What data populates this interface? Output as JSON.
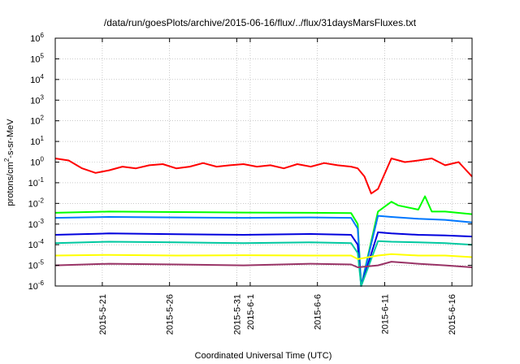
{
  "chart_data": {
    "type": "line",
    "title": "/data/run/goesPlots/archive/2015-06-16/flux/../flux/31daysMarsFluxes.txt",
    "xlabel": "Coordinated Universal Time (UTC)",
    "ylabel_parts": {
      "base": "protons/cm",
      "sup": "2",
      "rest": "-s-sr-MeV"
    },
    "yscale": "log",
    "ylim": [
      1e-06,
      1000000.0
    ],
    "xlim": [
      "2015-05-17T12:00",
      "2015-06-17T12:00"
    ],
    "grid": true,
    "legend": "none",
    "y_ticks": [
      {
        "value": 1e-06,
        "base": "10",
        "exp": "-6"
      },
      {
        "value": 1e-05,
        "base": "10",
        "exp": "-5"
      },
      {
        "value": 0.0001,
        "base": "10",
        "exp": "-4"
      },
      {
        "value": 0.001,
        "base": "10",
        "exp": "-3"
      },
      {
        "value": 0.01,
        "base": "10",
        "exp": "-2"
      },
      {
        "value": 0.1,
        "base": "10",
        "exp": "-1"
      },
      {
        "value": 1.0,
        "base": "10",
        "exp": "0"
      },
      {
        "value": 10.0,
        "base": "10",
        "exp": "1"
      },
      {
        "value": 100.0,
        "base": "10",
        "exp": "2"
      },
      {
        "value": 1000.0,
        "base": "10",
        "exp": "3"
      },
      {
        "value": 10000.0,
        "base": "10",
        "exp": "4"
      },
      {
        "value": 100000.0,
        "base": "10",
        "exp": "5"
      },
      {
        "value": 1000000.0,
        "base": "10",
        "exp": "6"
      }
    ],
    "x_ticks": [
      {
        "date": "2015-05-21",
        "label": "2015-5-21"
      },
      {
        "date": "2015-05-26",
        "label": "2015-5-26"
      },
      {
        "date": "2015-05-31",
        "label": "2015-5-31"
      },
      {
        "date": "2015-06-01",
        "label": "2015-6-1"
      },
      {
        "date": "2015-06-06",
        "label": "2015-6-6"
      },
      {
        "date": "2015-06-11",
        "label": "2015-6-11"
      },
      {
        "date": "2015-06-16",
        "label": "2015-6-16"
      }
    ],
    "series": [
      {
        "color": "#ff0000",
        "x": [
          "2015-05-17T12:00",
          "2015-05-18T12:00",
          "2015-05-19T12:00",
          "2015-05-20T12:00",
          "2015-05-21T12:00",
          "2015-05-22T12:00",
          "2015-05-23T12:00",
          "2015-05-24T12:00",
          "2015-05-25T12:00",
          "2015-05-26T12:00",
          "2015-05-27T12:00",
          "2015-05-28T12:00",
          "2015-05-29T12:00",
          "2015-05-30T12:00",
          "2015-05-31T12:00",
          "2015-06-01T12:00",
          "2015-06-02T12:00",
          "2015-06-03T12:00",
          "2015-06-04T12:00",
          "2015-06-05T12:00",
          "2015-06-06T12:00",
          "2015-06-07T12:00",
          "2015-06-08T12:00",
          "2015-06-09T00:00",
          "2015-06-09T12:00",
          "2015-06-10T00:00",
          "2015-06-10T12:00",
          "2015-06-11T12:00",
          "2015-06-12T12:00",
          "2015-06-13T12:00",
          "2015-06-14T12:00",
          "2015-06-15T12:00",
          "2015-06-16T12:00",
          "2015-06-17T12:00"
        ],
        "y": [
          1.5,
          1.2,
          0.5,
          0.3,
          0.4,
          0.6,
          0.5,
          0.7,
          0.8,
          0.5,
          0.6,
          0.9,
          0.6,
          0.7,
          0.8,
          0.6,
          0.7,
          0.5,
          0.8,
          0.6,
          0.9,
          0.7,
          0.6,
          0.5,
          0.2,
          0.03,
          0.05,
          1.5,
          1.0,
          1.2,
          1.5,
          0.7,
          1.0,
          0.2
        ]
      },
      {
        "color": "#00ff00",
        "x": [
          "2015-05-17T12:00",
          "2015-05-21T12:00",
          "2015-05-26T12:00",
          "2015-05-31T12:00",
          "2015-06-05T12:00",
          "2015-06-08T12:00",
          "2015-06-09T00:00",
          "2015-06-09T06:00",
          "2015-06-10T12:00",
          "2015-06-11T12:00",
          "2015-06-12T00:00",
          "2015-06-13T12:00",
          "2015-06-14T00:00",
          "2015-06-14T12:00",
          "2015-06-15T12:00",
          "2015-06-17T12:00"
        ],
        "y": [
          0.0035,
          0.004,
          0.0038,
          0.0036,
          0.0035,
          0.0034,
          0.001,
          1e-06,
          0.004,
          0.012,
          0.008,
          0.005,
          0.022,
          0.004,
          0.004,
          0.003
        ]
      },
      {
        "color": "#0077ff",
        "x": [
          "2015-05-17T12:00",
          "2015-05-21T12:00",
          "2015-05-26T12:00",
          "2015-05-31T12:00",
          "2015-06-05T12:00",
          "2015-06-08T12:00",
          "2015-06-09T00:00",
          "2015-06-09T06:00",
          "2015-06-10T12:00",
          "2015-06-11T12:00",
          "2015-06-13T12:00",
          "2015-06-15T12:00",
          "2015-06-17T12:00"
        ],
        "y": [
          0.002,
          0.0022,
          0.0021,
          0.002,
          0.0021,
          0.002,
          0.0006,
          1e-06,
          0.0025,
          0.0022,
          0.0018,
          0.0016,
          0.0012
        ]
      },
      {
        "color": "#0000dd",
        "x": [
          "2015-05-17T12:00",
          "2015-05-21T12:00",
          "2015-05-26T12:00",
          "2015-05-31T12:00",
          "2015-06-05T12:00",
          "2015-06-08T12:00",
          "2015-06-09T00:00",
          "2015-06-09T06:00",
          "2015-06-10T12:00",
          "2015-06-11T12:00",
          "2015-06-13T12:00",
          "2015-06-15T12:00",
          "2015-06-17T12:00"
        ],
        "y": [
          0.0003,
          0.00035,
          0.00032,
          0.0003,
          0.00033,
          0.0003,
          0.0001,
          1e-06,
          0.0004,
          0.00035,
          0.0003,
          0.00028,
          0.00025
        ]
      },
      {
        "color": "#00c8a0",
        "x": [
          "2015-05-17T12:00",
          "2015-05-21T12:00",
          "2015-05-26T12:00",
          "2015-05-31T12:00",
          "2015-06-05T12:00",
          "2015-06-08T12:00",
          "2015-06-09T00:00",
          "2015-06-09T06:00",
          "2015-06-10T12:00",
          "2015-06-11T12:00",
          "2015-06-13T12:00",
          "2015-06-15T12:00",
          "2015-06-17T12:00"
        ],
        "y": [
          0.00012,
          0.00014,
          0.00013,
          0.00012,
          0.00013,
          0.00012,
          4e-05,
          1e-06,
          0.00015,
          0.00014,
          0.00013,
          0.00012,
          0.0001
        ]
      },
      {
        "color": "#ffff00",
        "x": [
          "2015-05-17T12:00",
          "2015-05-21T12:00",
          "2015-05-26T12:00",
          "2015-05-31T12:00",
          "2015-06-05T12:00",
          "2015-06-08T12:00",
          "2015-06-09T00:00",
          "2015-06-10T12:00",
          "2015-06-11T12:00",
          "2015-06-13T12:00",
          "2015-06-15T12:00",
          "2015-06-17T12:00"
        ],
        "y": [
          3e-05,
          3.2e-05,
          3e-05,
          3.1e-05,
          3e-05,
          3e-05,
          2e-05,
          3e-05,
          3.5e-05,
          3e-05,
          3e-05,
          2.5e-05
        ]
      },
      {
        "color": "#993366",
        "x": [
          "2015-05-17T12:00",
          "2015-05-21T12:00",
          "2015-05-26T12:00",
          "2015-05-31T12:00",
          "2015-06-05T12:00",
          "2015-06-08T12:00",
          "2015-06-09T00:00",
          "2015-06-10T12:00",
          "2015-06-11T12:00",
          "2015-06-13T12:00",
          "2015-06-15T12:00",
          "2015-06-17T12:00"
        ],
        "y": [
          1e-05,
          1.2e-05,
          1.1e-05,
          1e-05,
          1.2e-05,
          1.1e-05,
          8e-06,
          1e-05,
          1.5e-05,
          1.2e-05,
          1e-05,
          8e-06
        ]
      }
    ]
  }
}
